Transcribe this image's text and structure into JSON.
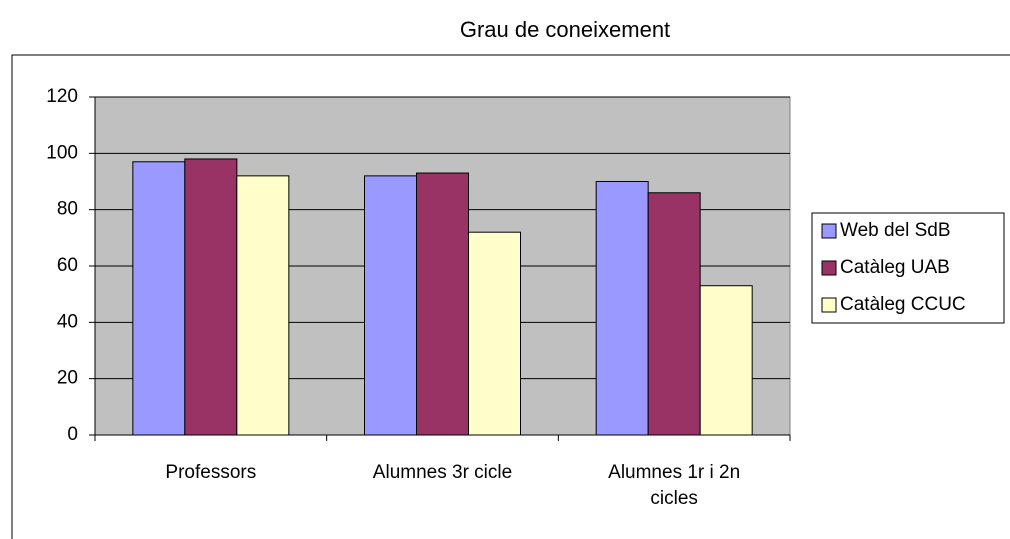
{
  "chart_data": {
    "type": "bar",
    "title": "Grau de coneixement",
    "categories": [
      "Professors",
      "Alumnes 3r cicle",
      "Alumnes 1r i 2n cicles"
    ],
    "series": [
      {
        "name": "Web del SdB",
        "color": "#9999ff",
        "values": [
          97,
          92,
          90
        ]
      },
      {
        "name": "Catàleg UAB",
        "color": "#993366",
        "values": [
          98,
          93,
          86
        ]
      },
      {
        "name": "Catàleg CCUC",
        "color": "#ffffcc",
        "values": [
          92,
          72,
          53
        ]
      }
    ],
    "ylim": [
      0,
      120
    ],
    "yticks": [
      0,
      20,
      40,
      60,
      80,
      100,
      120
    ],
    "grid": true,
    "legend": "right",
    "plot_background": "#c0c0c0"
  }
}
